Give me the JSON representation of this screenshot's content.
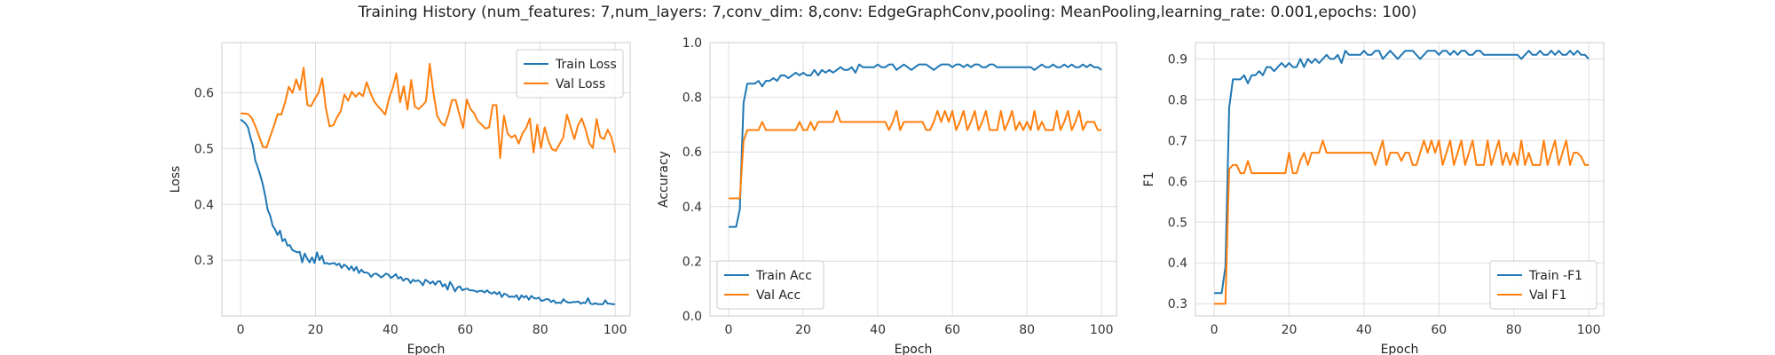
{
  "figure": {
    "title": "Training History (num_features: 7,num_layers: 7,conv_dim: 8,conv: EdgeGraphConv,pooling: MeanPooling,learning_rate: 0.001,epochs: 100)"
  },
  "chart_data": [
    {
      "type": "line",
      "xlabel": "Epoch",
      "ylabel": "Loss",
      "xlim": [
        -5,
        104
      ],
      "ylim": [
        0.2,
        0.69
      ],
      "xticks": [
        0,
        20,
        40,
        60,
        80,
        100
      ],
      "yticks": [
        0.3,
        0.4,
        0.5,
        0.6
      ],
      "ytick_labels": [
        "0.3",
        "0.4",
        "0.5",
        "0.6"
      ],
      "grid": true,
      "legend_position": "top-right",
      "series": [
        {
          "name": "Train Loss",
          "color": "#1f77b4",
          "values": [
            0.552,
            0.549,
            0.545,
            0.538,
            0.52,
            0.505,
            0.478,
            0.466,
            0.452,
            0.436,
            0.415,
            0.39,
            0.38,
            0.362,
            0.355,
            0.345,
            0.353,
            0.334,
            0.338,
            0.326,
            0.327,
            0.318,
            0.316,
            0.314,
            0.315,
            0.296,
            0.312,
            0.303,
            0.296,
            0.305,
            0.295,
            0.314,
            0.3,
            0.308,
            0.294,
            0.295,
            0.293,
            0.294,
            0.295,
            0.291,
            0.294,
            0.286,
            0.292,
            0.289,
            0.283,
            0.289,
            0.281,
            0.288,
            0.277,
            0.283,
            0.278,
            0.278,
            0.276,
            0.27,
            0.275,
            0.276,
            0.273,
            0.269,
            0.272,
            0.276,
            0.274,
            0.268,
            0.271,
            0.275,
            0.267,
            0.27,
            0.263,
            0.267,
            0.266,
            0.259,
            0.265,
            0.262,
            0.264,
            0.261,
            0.255,
            0.265,
            0.262,
            0.258,
            0.262,
            0.256,
            0.262,
            0.262,
            0.253,
            0.257,
            0.247,
            0.261,
            0.254,
            0.244,
            0.251,
            0.253,
            0.246,
            0.248,
            0.249,
            0.246,
            0.246,
            0.245,
            0.243,
            0.245,
            0.245,
            0.242,
            0.246,
            0.242,
            0.24,
            0.243,
            0.239,
            0.243,
            0.234,
            0.24,
            0.238,
            0.234,
            0.235,
            0.234,
            0.237,
            0.229,
            0.237,
            0.233,
            0.236,
            0.229,
            0.236,
            0.232,
            0.231,
            0.233,
            0.227,
            0.228,
            0.23,
            0.23,
            0.225,
            0.228,
            0.223,
            0.224,
            0.223,
            0.23,
            0.226,
            0.224,
            0.224,
            0.225,
            0.225,
            0.226,
            0.222,
            0.224,
            0.223,
            0.232,
            0.222,
            0.221,
            0.223,
            0.221,
            0.221,
            0.221,
            0.228,
            0.222,
            0.222,
            0.221,
            0.221
          ],
          "x_note_unused": null
        },
        {
          "name": "Val Loss",
          "color": "#ff7f0e",
          "values": [
            0.563,
            0.563,
            0.562,
            0.555,
            0.54,
            0.522,
            0.503,
            0.502,
            0.522,
            0.541,
            0.562,
            0.561,
            0.583,
            0.611,
            0.6,
            0.624,
            0.605,
            0.645,
            0.578,
            0.576,
            0.589,
            0.6,
            0.626,
            0.572,
            0.54,
            0.542,
            0.556,
            0.567,
            0.597,
            0.586,
            0.602,
            0.593,
            0.6,
            0.594,
            0.619,
            0.6,
            0.585,
            0.576,
            0.569,
            0.561,
            0.59,
            0.608,
            0.635,
            0.583,
            0.612,
            0.57,
            0.623,
            0.575,
            0.571,
            0.577,
            0.585,
            0.652,
            0.6,
            0.559,
            0.547,
            0.541,
            0.56,
            0.587,
            0.587,
            0.561,
            0.537,
            0.588,
            0.571,
            0.563,
            0.549,
            0.543,
            0.536,
            0.538,
            0.578,
            0.578,
            0.483,
            0.559,
            0.527,
            0.52,
            0.524,
            0.509,
            0.527,
            0.537,
            0.554,
            0.493,
            0.543,
            0.501,
            0.538,
            0.514,
            0.499,
            0.496,
            0.508,
            0.52,
            0.561,
            0.539,
            0.517,
            0.542,
            0.554,
            0.535,
            0.51,
            0.501,
            0.553,
            0.521,
            0.517,
            0.534,
            0.52,
            0.493
          ]
        }
      ]
    },
    {
      "type": "line",
      "xlabel": "Epoch",
      "ylabel": "Accuracy",
      "xlim": [
        -5,
        104
      ],
      "ylim": [
        0.0,
        1.0
      ],
      "xticks": [
        0,
        20,
        40,
        60,
        80,
        100
      ],
      "yticks": [
        0.0,
        0.2,
        0.4,
        0.6,
        0.8,
        1.0
      ],
      "ytick_labels": [
        "0.0",
        "0.2",
        "0.4",
        "0.6",
        "0.8",
        "1.0"
      ],
      "grid": true,
      "legend_position": "bottom-left",
      "series": [
        {
          "name": "Train Acc",
          "color": "#1f77b4",
          "values": [
            0.326,
            0.326,
            0.326,
            0.39,
            0.78,
            0.85,
            0.85,
            0.85,
            0.86,
            0.84,
            0.86,
            0.86,
            0.87,
            0.86,
            0.88,
            0.88,
            0.87,
            0.88,
            0.89,
            0.88,
            0.89,
            0.88,
            0.88,
            0.9,
            0.88,
            0.9,
            0.89,
            0.9,
            0.89,
            0.9,
            0.91,
            0.9,
            0.9,
            0.91,
            0.89,
            0.92,
            0.91,
            0.91,
            0.91,
            0.91,
            0.92,
            0.91,
            0.91,
            0.92,
            0.92,
            0.9,
            0.91,
            0.92,
            0.91,
            0.9,
            0.91,
            0.92,
            0.92,
            0.92,
            0.91,
            0.9,
            0.91,
            0.92,
            0.92,
            0.92,
            0.91,
            0.92,
            0.92,
            0.91,
            0.92,
            0.91,
            0.92,
            0.92,
            0.91,
            0.91,
            0.92,
            0.92,
            0.91,
            0.91,
            0.91,
            0.91,
            0.91,
            0.91,
            0.91,
            0.91,
            0.91,
            0.91,
            0.9,
            0.91,
            0.92,
            0.91,
            0.91,
            0.92,
            0.91,
            0.91,
            0.92,
            0.91,
            0.92,
            0.91,
            0.91,
            0.92,
            0.91,
            0.92,
            0.91,
            0.91,
            0.9
          ]
        },
        {
          "name": "Val Acc",
          "color": "#ff7f0e",
          "values": [
            0.43,
            0.43,
            0.43,
            0.43,
            0.64,
            0.68,
            0.68,
            0.68,
            0.68,
            0.71,
            0.68,
            0.68,
            0.68,
            0.68,
            0.68,
            0.68,
            0.68,
            0.68,
            0.68,
            0.71,
            0.68,
            0.68,
            0.71,
            0.68,
            0.71,
            0.71,
            0.71,
            0.71,
            0.71,
            0.75,
            0.71,
            0.71,
            0.71,
            0.71,
            0.71,
            0.71,
            0.71,
            0.71,
            0.71,
            0.71,
            0.71,
            0.71,
            0.71,
            0.68,
            0.71,
            0.75,
            0.68,
            0.71,
            0.71,
            0.71,
            0.71,
            0.71,
            0.71,
            0.68,
            0.68,
            0.71,
            0.75,
            0.71,
            0.75,
            0.71,
            0.75,
            0.68,
            0.71,
            0.75,
            0.68,
            0.71,
            0.75,
            0.68,
            0.71,
            0.75,
            0.68,
            0.68,
            0.68,
            0.75,
            0.68,
            0.71,
            0.75,
            0.68,
            0.71,
            0.68,
            0.71,
            0.68,
            0.75,
            0.68,
            0.71,
            0.68,
            0.68,
            0.68,
            0.75,
            0.68,
            0.71,
            0.75,
            0.68,
            0.71,
            0.75,
            0.68,
            0.71,
            0.71,
            0.71,
            0.68,
            0.68
          ]
        }
      ]
    },
    {
      "type": "line",
      "xlabel": "Epoch",
      "ylabel": "F1",
      "xlim": [
        -5,
        104
      ],
      "ylim": [
        0.27,
        0.94
      ],
      "xticks": [
        0,
        20,
        40,
        60,
        80,
        100
      ],
      "yticks": [
        0.3,
        0.4,
        0.5,
        0.6,
        0.7,
        0.8,
        0.9
      ],
      "ytick_labels": [
        "0.3",
        "0.4",
        "0.5",
        "0.6",
        "0.7",
        "0.8",
        "0.9"
      ],
      "grid": true,
      "legend_position": "bottom-right",
      "series": [
        {
          "name": "Train -F1",
          "color": "#1f77b4",
          "values": [
            0.326,
            0.326,
            0.326,
            0.39,
            0.78,
            0.85,
            0.85,
            0.85,
            0.86,
            0.84,
            0.86,
            0.86,
            0.87,
            0.86,
            0.88,
            0.88,
            0.87,
            0.88,
            0.89,
            0.88,
            0.89,
            0.88,
            0.88,
            0.9,
            0.88,
            0.9,
            0.89,
            0.9,
            0.89,
            0.9,
            0.91,
            0.9,
            0.9,
            0.91,
            0.89,
            0.92,
            0.91,
            0.91,
            0.91,
            0.91,
            0.92,
            0.91,
            0.91,
            0.92,
            0.92,
            0.9,
            0.91,
            0.92,
            0.91,
            0.9,
            0.91,
            0.92,
            0.92,
            0.92,
            0.91,
            0.9,
            0.91,
            0.92,
            0.92,
            0.92,
            0.91,
            0.92,
            0.92,
            0.91,
            0.92,
            0.91,
            0.92,
            0.92,
            0.91,
            0.91,
            0.92,
            0.92,
            0.91,
            0.91,
            0.91,
            0.91,
            0.91,
            0.91,
            0.91,
            0.91,
            0.91,
            0.91,
            0.9,
            0.91,
            0.92,
            0.91,
            0.91,
            0.92,
            0.91,
            0.91,
            0.92,
            0.91,
            0.92,
            0.91,
            0.91,
            0.92,
            0.91,
            0.92,
            0.91,
            0.91,
            0.9
          ]
        },
        {
          "name": "Val F1",
          "color": "#ff7f0e",
          "values": [
            0.3,
            0.3,
            0.3,
            0.3,
            0.63,
            0.64,
            0.64,
            0.62,
            0.62,
            0.65,
            0.62,
            0.62,
            0.62,
            0.62,
            0.62,
            0.62,
            0.62,
            0.62,
            0.62,
            0.62,
            0.67,
            0.62,
            0.62,
            0.65,
            0.67,
            0.64,
            0.67,
            0.67,
            0.67,
            0.7,
            0.67,
            0.67,
            0.67,
            0.67,
            0.67,
            0.67,
            0.67,
            0.67,
            0.67,
            0.67,
            0.67,
            0.67,
            0.67,
            0.64,
            0.67,
            0.7,
            0.64,
            0.67,
            0.67,
            0.67,
            0.65,
            0.67,
            0.67,
            0.64,
            0.64,
            0.67,
            0.7,
            0.67,
            0.7,
            0.67,
            0.7,
            0.64,
            0.67,
            0.7,
            0.64,
            0.67,
            0.7,
            0.64,
            0.67,
            0.7,
            0.64,
            0.64,
            0.64,
            0.7,
            0.64,
            0.67,
            0.7,
            0.64,
            0.67,
            0.64,
            0.67,
            0.64,
            0.7,
            0.64,
            0.67,
            0.64,
            0.64,
            0.64,
            0.7,
            0.64,
            0.67,
            0.7,
            0.64,
            0.67,
            0.7,
            0.64,
            0.67,
            0.67,
            0.66,
            0.64,
            0.64
          ]
        }
      ]
    }
  ]
}
